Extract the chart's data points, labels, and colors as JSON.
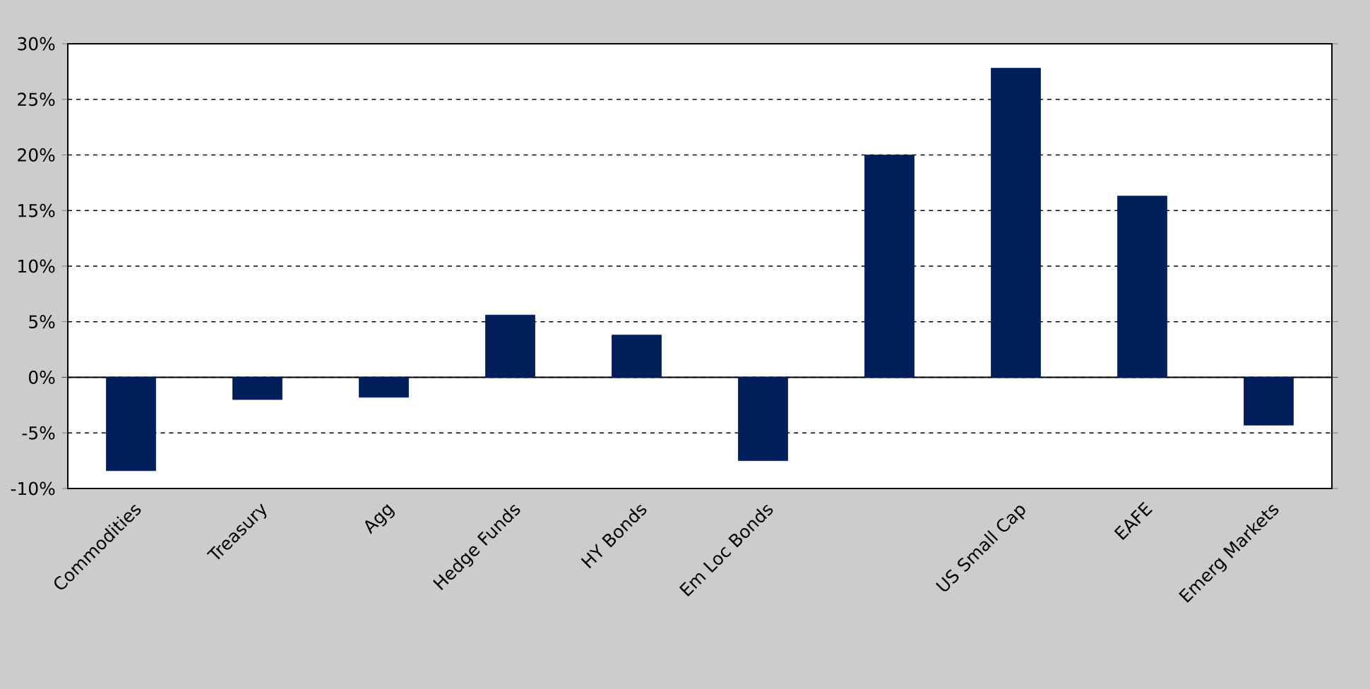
{
  "chart_data": {
    "type": "bar",
    "categories": [
      "Commodities",
      "Treasury",
      "Agg",
      "Hedge Funds",
      "HY Bonds",
      "Em Loc Bonds",
      null,
      "US Small Cap",
      "EAFE",
      "Emerg Markets"
    ],
    "values": [
      -8.4,
      -2.0,
      -1.8,
      5.6,
      3.8,
      -7.5,
      20.0,
      27.8,
      16.3,
      -4.3
    ],
    "color": "#001f5b",
    "ylim": [
      -10,
      30
    ],
    "yticks": [
      {
        "value": -10,
        "label": "-10%"
      },
      {
        "value": -5,
        "label": "-5%"
      },
      {
        "value": 0,
        "label": "0%"
      },
      {
        "value": 5,
        "label": "5%"
      },
      {
        "value": 10,
        "label": "10%"
      },
      {
        "value": 15,
        "label": "15%"
      },
      {
        "value": 20,
        "label": "20%"
      },
      {
        "value": 25,
        "label": "25%"
      },
      {
        "value": 30,
        "label": "30%"
      }
    ],
    "grid": "y"
  }
}
